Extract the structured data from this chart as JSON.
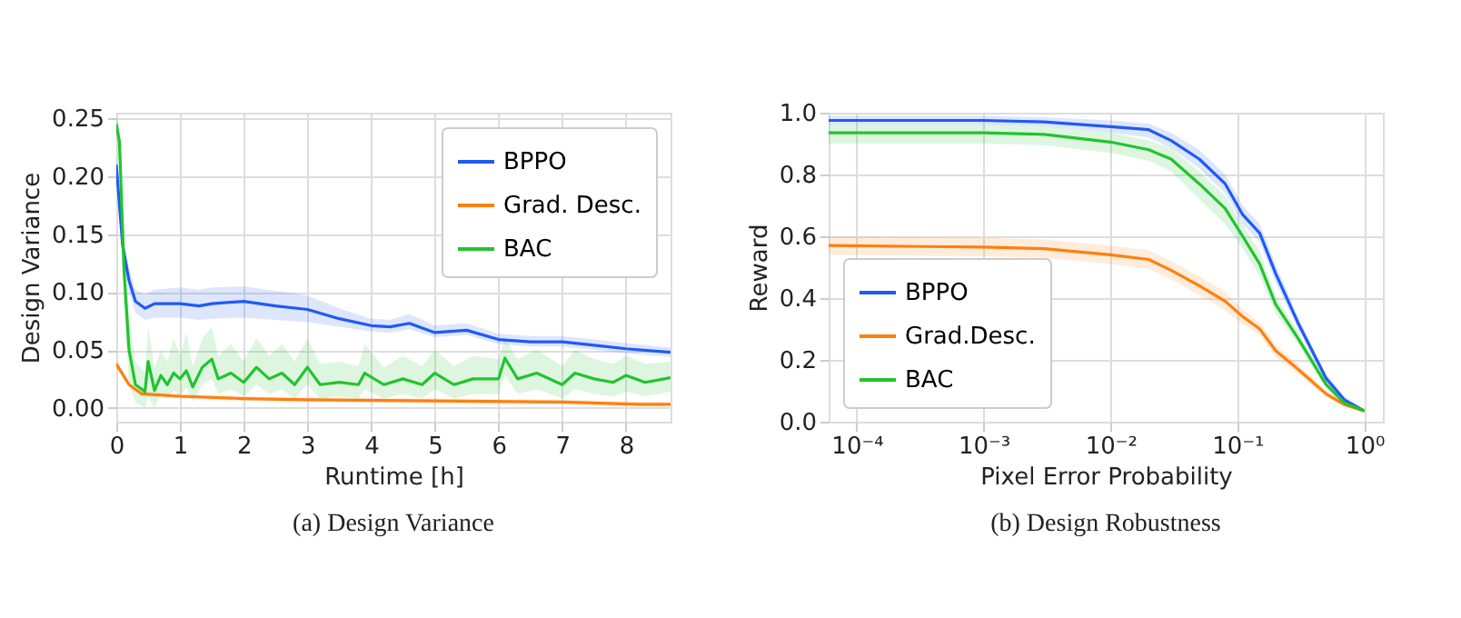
{
  "chart_data": [
    {
      "type": "line",
      "title": "(a) Design Variance",
      "xlabel": "Runtime [h]",
      "ylabel": "Design Variance",
      "xlim": [
        0,
        8.7
      ],
      "ylim": [
        -0.012,
        0.255
      ],
      "xticks": [
        0,
        1,
        2,
        3,
        4,
        5,
        6,
        7,
        8
      ],
      "yticks": [
        {
          "value": 0,
          "label": "0.00"
        },
        {
          "value": 0.05,
          "label": "0.05"
        },
        {
          "value": 0.1,
          "label": "0.10"
        },
        {
          "value": 0.15,
          "label": "0.15"
        },
        {
          "value": 0.2,
          "label": "0.20"
        },
        {
          "value": 0.25,
          "label": "0.25"
        }
      ],
      "grid": true,
      "legend": "top right",
      "line_style": "solid",
      "marker": "none",
      "series": [
        {
          "name": "BPPO",
          "color": "#1f5af5",
          "x": [
            0,
            0.1,
            0.2,
            0.3,
            0.45,
            0.6,
            1,
            1.3,
            1.5,
            2,
            2.5,
            3,
            3.5,
            4,
            4.3,
            4.6,
            5,
            5.5,
            6,
            6.5,
            7,
            7.5,
            8,
            8.7
          ],
          "values": [
            0.21,
            0.14,
            0.11,
            0.092,
            0.086,
            0.09,
            0.09,
            0.088,
            0.09,
            0.092,
            0.088,
            0.085,
            0.077,
            0.071,
            0.07,
            0.073,
            0.065,
            0.067,
            0.059,
            0.057,
            0.057,
            0.054,
            0.051,
            0.048
          ],
          "lower": [
            0.2,
            0.13,
            0.1,
            0.082,
            0.076,
            0.078,
            0.078,
            0.076,
            0.077,
            0.078,
            0.076,
            0.074,
            0.07,
            0.066,
            0.065,
            0.068,
            0.061,
            0.063,
            0.055,
            0.053,
            0.053,
            0.05,
            0.047,
            0.044
          ],
          "upper": [
            0.22,
            0.15,
            0.12,
            0.102,
            0.098,
            0.102,
            0.104,
            0.102,
            0.104,
            0.105,
            0.101,
            0.097,
            0.086,
            0.077,
            0.076,
            0.081,
            0.071,
            0.073,
            0.064,
            0.062,
            0.062,
            0.059,
            0.056,
            0.052
          ]
        },
        {
          "name": "Grad. Desc.",
          "color": "#ff7f0e",
          "x": [
            0,
            0.2,
            0.4,
            1,
            2,
            3,
            5,
            7,
            8.2,
            8.7
          ],
          "values": [
            0.038,
            0.02,
            0.012,
            0.01,
            0.008,
            0.007,
            0.006,
            0.005,
            0.003,
            0.003
          ],
          "lower": [
            0.035,
            0.018,
            0.01,
            0.008,
            0.006,
            0.005,
            0.004,
            0.003,
            0.001,
            0.001
          ],
          "upper": [
            0.041,
            0.022,
            0.014,
            0.012,
            0.01,
            0.009,
            0.008,
            0.007,
            0.005,
            0.005
          ]
        },
        {
          "name": "BAC",
          "color": "#22c32e",
          "x": [
            0,
            0.05,
            0.12,
            0.2,
            0.3,
            0.45,
            0.5,
            0.6,
            0.7,
            0.8,
            0.9,
            1,
            1.1,
            1.2,
            1.35,
            1.5,
            1.6,
            1.8,
            2,
            2.2,
            2.4,
            2.6,
            2.8,
            3,
            3.2,
            3.5,
            3.8,
            3.9,
            4.2,
            4.5,
            4.8,
            5,
            5.3,
            5.6,
            6,
            6.1,
            6.3,
            6.6,
            7,
            7.2,
            7.5,
            7.8,
            8,
            8.3,
            8.7
          ],
          "values": [
            0.245,
            0.23,
            0.12,
            0.05,
            0.02,
            0.014,
            0.04,
            0.015,
            0.028,
            0.02,
            0.03,
            0.025,
            0.032,
            0.018,
            0.035,
            0.042,
            0.025,
            0.03,
            0.022,
            0.035,
            0.025,
            0.03,
            0.02,
            0.035,
            0.02,
            0.022,
            0.02,
            0.03,
            0.02,
            0.025,
            0.02,
            0.03,
            0.02,
            0.025,
            0.025,
            0.043,
            0.025,
            0.03,
            0.02,
            0.03,
            0.025,
            0.022,
            0.028,
            0.022,
            0.026
          ],
          "lower": [
            0.235,
            0.21,
            0.09,
            0.02,
            0.005,
            0.0,
            0.01,
            0.0,
            0.012,
            0.008,
            0.015,
            0.01,
            0.018,
            0.005,
            0.02,
            0.025,
            0.012,
            0.016,
            0.01,
            0.02,
            0.012,
            0.016,
            0.008,
            0.02,
            0.008,
            0.01,
            0.008,
            0.016,
            0.008,
            0.012,
            0.008,
            0.016,
            0.008,
            0.012,
            0.012,
            0.028,
            0.012,
            0.016,
            0.008,
            0.016,
            0.012,
            0.01,
            0.014,
            0.01,
            0.014
          ],
          "upper": [
            0.25,
            0.245,
            0.15,
            0.08,
            0.04,
            0.03,
            0.07,
            0.035,
            0.05,
            0.04,
            0.06,
            0.045,
            0.065,
            0.035,
            0.06,
            0.07,
            0.045,
            0.055,
            0.04,
            0.06,
            0.045,
            0.055,
            0.04,
            0.06,
            0.038,
            0.04,
            0.036,
            0.055,
            0.035,
            0.045,
            0.036,
            0.05,
            0.036,
            0.045,
            0.042,
            0.06,
            0.042,
            0.05,
            0.036,
            0.05,
            0.042,
            0.038,
            0.045,
            0.038,
            0.04
          ]
        }
      ]
    },
    {
      "type": "line",
      "title": "(b) Design Robustness",
      "xlabel": "Pixel Error Probability",
      "ylabel": "Reward",
      "log": "x",
      "xlim": [
        6e-05,
        1.4
      ],
      "ylim": [
        0,
        1.0
      ],
      "xticks": [
        {
          "value": 0.0001,
          "label": "10⁻⁴"
        },
        {
          "value": 0.001,
          "label": "10⁻³"
        },
        {
          "value": 0.01,
          "label": "10⁻²"
        },
        {
          "value": 0.1,
          "label": "10⁻¹"
        },
        {
          "value": 1,
          "label": "10⁰"
        }
      ],
      "yticks": [
        {
          "value": 0,
          "label": "0.0"
        },
        {
          "value": 0.2,
          "label": "0.2"
        },
        {
          "value": 0.4,
          "label": "0.4"
        },
        {
          "value": 0.6,
          "label": "0.6"
        },
        {
          "value": 0.8,
          "label": "0.8"
        },
        {
          "value": 1.0,
          "label": "1.0"
        }
      ],
      "grid": true,
      "legend": "bottom left",
      "line_style": "solid",
      "marker": "none",
      "series": [
        {
          "name": "BPPO",
          "color": "#1f5af5",
          "x": [
            6e-05,
            0.001,
            0.003,
            0.01,
            0.02,
            0.03,
            0.05,
            0.08,
            0.11,
            0.15,
            0.2,
            0.3,
            0.5,
            0.7,
            1
          ],
          "values": [
            0.975,
            0.975,
            0.97,
            0.955,
            0.945,
            0.91,
            0.85,
            0.77,
            0.67,
            0.61,
            0.48,
            0.32,
            0.14,
            0.07,
            0.035
          ],
          "lower": [
            0.96,
            0.96,
            0.955,
            0.935,
            0.92,
            0.885,
            0.82,
            0.74,
            0.64,
            0.58,
            0.45,
            0.3,
            0.125,
            0.06,
            0.03
          ],
          "upper": [
            0.99,
            0.99,
            0.985,
            0.975,
            0.965,
            0.935,
            0.88,
            0.8,
            0.7,
            0.64,
            0.51,
            0.34,
            0.155,
            0.08,
            0.04
          ]
        },
        {
          "name": "Grad.Desc.",
          "color": "#ff7f0e",
          "x": [
            6e-05,
            0.001,
            0.003,
            0.01,
            0.02,
            0.03,
            0.05,
            0.08,
            0.11,
            0.15,
            0.2,
            0.3,
            0.5,
            0.7,
            1
          ],
          "values": [
            0.57,
            0.565,
            0.56,
            0.54,
            0.525,
            0.49,
            0.44,
            0.39,
            0.34,
            0.3,
            0.23,
            0.17,
            0.09,
            0.055,
            0.035
          ],
          "lower": [
            0.54,
            0.535,
            0.53,
            0.51,
            0.495,
            0.46,
            0.41,
            0.36,
            0.315,
            0.28,
            0.21,
            0.155,
            0.08,
            0.048,
            0.03
          ],
          "upper": [
            0.6,
            0.595,
            0.59,
            0.57,
            0.555,
            0.52,
            0.47,
            0.42,
            0.365,
            0.32,
            0.25,
            0.185,
            0.1,
            0.062,
            0.04
          ]
        },
        {
          "name": "BAC",
          "color": "#22c32e",
          "x": [
            6e-05,
            0.001,
            0.003,
            0.01,
            0.02,
            0.03,
            0.05,
            0.08,
            0.11,
            0.15,
            0.2,
            0.3,
            0.5,
            0.7,
            1
          ],
          "values": [
            0.935,
            0.935,
            0.93,
            0.905,
            0.88,
            0.85,
            0.77,
            0.69,
            0.6,
            0.51,
            0.38,
            0.27,
            0.12,
            0.06,
            0.035
          ],
          "lower": [
            0.9,
            0.9,
            0.895,
            0.87,
            0.845,
            0.81,
            0.72,
            0.64,
            0.56,
            0.47,
            0.35,
            0.25,
            0.105,
            0.05,
            0.03
          ],
          "upper": [
            0.96,
            0.96,
            0.955,
            0.935,
            0.91,
            0.885,
            0.81,
            0.73,
            0.64,
            0.55,
            0.41,
            0.29,
            0.135,
            0.07,
            0.04
          ]
        }
      ]
    }
  ]
}
